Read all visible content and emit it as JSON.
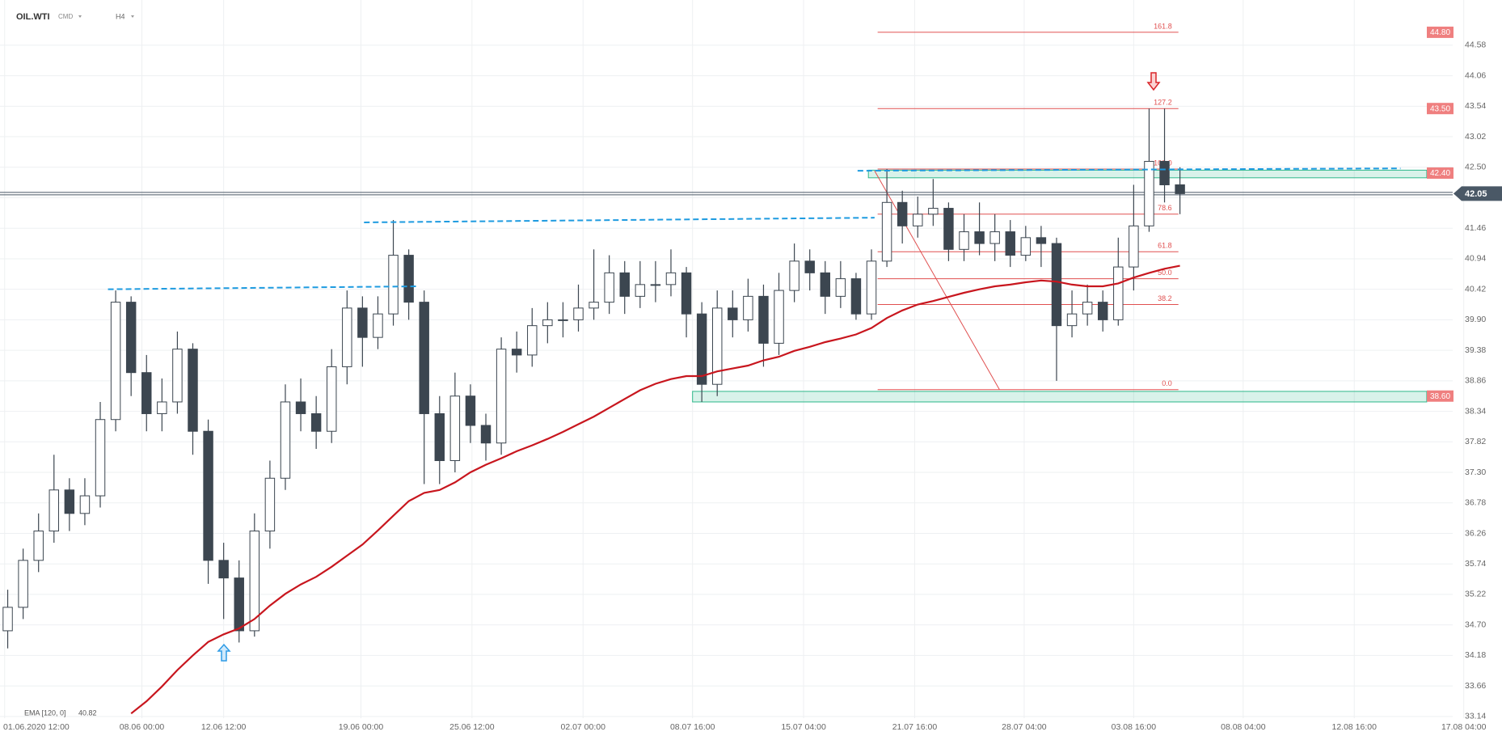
{
  "header": {
    "symbol": "OIL.WTI",
    "market": "CMD",
    "interval": "H4"
  },
  "chart_data": {
    "type": "candlestick",
    "xlim": [
      0,
      95
    ],
    "xticks": [
      {
        "value": 0.3,
        "label": "01.06.2020 12:00"
      },
      {
        "value": 9.2,
        "label": "08.06 00:00"
      },
      {
        "value": 14.5,
        "label": "12.06 12:00"
      },
      {
        "value": 23.4,
        "label": "19.06 00:00"
      },
      {
        "value": 30.6,
        "label": "25.06 12:00"
      },
      {
        "value": 37.8,
        "label": "02.07 00:00"
      },
      {
        "value": 44.9,
        "label": "08.07 16:00"
      },
      {
        "value": 52.1,
        "label": "15.07 04:00"
      },
      {
        "value": 59.3,
        "label": "21.07 16:00"
      },
      {
        "value": 66.4,
        "label": "28.07 04:00"
      },
      {
        "value": 73.5,
        "label": "03.08 16:00"
      },
      {
        "value": 80.6,
        "label": "08.08 04:00"
      },
      {
        "value": 87.8,
        "label": "12.08 16:00"
      },
      {
        "value": 94.9,
        "label": "17.08 04:00"
      }
    ],
    "ylim": [
      33.11,
      45.35
    ],
    "yticks": [
      33.14,
      33.66,
      34.18,
      {
        "value": 34.7,
        "label": "34.70"
      },
      35.22,
      35.74,
      36.26,
      36.78,
      {
        "value": 37.3,
        "label": "37.30"
      },
      37.82,
      38.34,
      38.86,
      39.38,
      {
        "value": 39.9,
        "label": "39.90"
      },
      40.42,
      40.94,
      41.46,
      41.98,
      {
        "value": 42.5,
        "label": "42.50"
      },
      43.02,
      43.54,
      44.06,
      44.58
    ],
    "grid": true,
    "colors": {
      "up": "#ffffff",
      "down": "#3c4650",
      "wick": "#3c4650"
    },
    "x": [
      0.5,
      1.5,
      2.5,
      3.5,
      4.5,
      5.5,
      6.5,
      7.5,
      8.5,
      9.5,
      10.5,
      11.5,
      12.5,
      13.5,
      14.5,
      15.5,
      16.5,
      17.5,
      18.5,
      19.5,
      20.5,
      21.5,
      22.5,
      23.5,
      24.5,
      25.5,
      26.5,
      27.5,
      28.5,
      29.5,
      30.5,
      31.5,
      32.5,
      33.5,
      34.5,
      35.5,
      36.5,
      37.5,
      38.5,
      39.5,
      40.5,
      41.5,
      42.5,
      43.5,
      44.5,
      45.5,
      46.5,
      47.5,
      48.5,
      49.5,
      50.5,
      51.5,
      52.5,
      53.5,
      54.5,
      55.5,
      56.5,
      57.5,
      58.5,
      59.5,
      60.5,
      61.5,
      62.5,
      63.5,
      64.5,
      65.5,
      66.5,
      67.5,
      68.5,
      69.5,
      70.5,
      71.5,
      72.5,
      73.5,
      74.5,
      75.5,
      76.5
    ],
    "open": [
      34.6,
      35.0,
      35.8,
      36.3,
      37.0,
      36.6,
      36.9,
      38.2,
      40.2,
      39.0,
      38.3,
      38.5,
      39.4,
      38.0,
      35.8,
      35.5,
      34.6,
      36.3,
      37.2,
      38.5,
      38.3,
      38.0,
      39.1,
      40.1,
      39.6,
      40.0,
      41.0,
      40.2,
      38.3,
      37.5,
      38.6,
      38.1,
      37.8,
      39.4,
      39.3,
      39.8,
      39.9,
      39.9,
      40.1,
      40.2,
      40.7,
      40.3,
      40.5,
      40.5,
      40.7,
      40.0,
      38.8,
      40.1,
      39.9,
      40.3,
      39.5,
      40.4,
      40.9,
      40.7,
      40.3,
      40.6,
      40.0,
      40.9,
      41.9,
      41.5,
      41.7,
      41.8,
      41.1,
      41.4,
      41.2,
      41.4,
      41.0,
      41.3,
      41.2,
      39.8,
      40.0,
      40.2,
      39.9,
      40.8,
      41.5,
      42.6,
      42.2
    ],
    "high": [
      35.3,
      36.0,
      36.6,
      37.6,
      37.2,
      37.2,
      38.5,
      40.4,
      40.3,
      39.3,
      38.9,
      39.7,
      39.5,
      38.2,
      36.1,
      35.8,
      36.6,
      37.5,
      38.8,
      38.9,
      38.6,
      39.4,
      40.4,
      40.3,
      40.3,
      41.6,
      41.1,
      40.4,
      38.6,
      39.0,
      38.8,
      38.3,
      39.6,
      39.7,
      40.1,
      40.2,
      40.2,
      40.5,
      41.1,
      41.0,
      40.9,
      40.9,
      40.9,
      41.1,
      40.8,
      40.2,
      40.4,
      40.4,
      40.6,
      40.5,
      40.7,
      41.2,
      41.1,
      40.9,
      40.9,
      40.7,
      41.1,
      42.47,
      42.1,
      42.0,
      42.3,
      41.9,
      41.7,
      41.9,
      41.7,
      41.6,
      41.5,
      41.5,
      41.3,
      40.4,
      40.5,
      40.4,
      41.3,
      42.2,
      43.5,
      43.5,
      42.5
    ],
    "low": [
      34.3,
      34.8,
      35.6,
      36.1,
      36.3,
      36.4,
      36.7,
      38.0,
      38.6,
      38.0,
      38.0,
      38.3,
      37.6,
      35.4,
      34.8,
      34.4,
      34.5,
      36.0,
      37.0,
      38.0,
      37.7,
      37.8,
      38.8,
      39.1,
      39.4,
      39.8,
      39.9,
      37.1,
      37.1,
      37.3,
      37.8,
      37.5,
      37.6,
      39.0,
      39.1,
      39.5,
      39.6,
      39.7,
      39.9,
      40.0,
      40.0,
      40.1,
      40.2,
      40.3,
      39.6,
      38.5,
      38.6,
      39.6,
      39.7,
      39.1,
      39.3,
      40.2,
      40.4,
      40.0,
      40.1,
      39.9,
      39.9,
      40.8,
      41.2,
      41.3,
      41.5,
      40.9,
      40.9,
      41.0,
      40.9,
      40.8,
      40.9,
      40.8,
      38.86,
      39.6,
      39.8,
      39.7,
      39.8,
      40.4,
      41.4,
      41.9,
      41.7
    ],
    "close": [
      35.0,
      35.8,
      36.3,
      37.0,
      36.6,
      36.9,
      38.2,
      40.2,
      39.0,
      38.3,
      38.5,
      39.4,
      38.0,
      35.8,
      35.5,
      34.6,
      36.3,
      37.2,
      38.5,
      38.3,
      38.0,
      39.1,
      40.1,
      39.6,
      40.0,
      41.0,
      40.2,
      38.3,
      37.5,
      38.6,
      38.1,
      37.8,
      39.4,
      39.3,
      39.8,
      39.9,
      39.9,
      40.1,
      40.2,
      40.7,
      40.3,
      40.5,
      40.5,
      40.7,
      40.0,
      38.8,
      40.1,
      39.9,
      40.3,
      39.5,
      40.4,
      40.9,
      40.7,
      40.3,
      40.6,
      40.0,
      40.9,
      41.9,
      41.5,
      41.7,
      41.8,
      41.1,
      41.4,
      41.2,
      41.4,
      41.0,
      41.3,
      41.2,
      39.8,
      40.0,
      40.2,
      39.9,
      40.8,
      41.5,
      42.6,
      42.2,
      42.05
    ],
    "ema": {
      "name": "EMA [120, 0]",
      "color": "#c8161e",
      "values": [
        null,
        null,
        null,
        null,
        null,
        null,
        null,
        null,
        33.19,
        33.4,
        33.65,
        33.93,
        34.18,
        34.41,
        34.54,
        34.64,
        34.8,
        35.03,
        35.23,
        35.39,
        35.52,
        35.69,
        35.88,
        36.07,
        36.31,
        36.56,
        36.81,
        36.95,
        37.0,
        37.13,
        37.3,
        37.43,
        37.54,
        37.66,
        37.76,
        37.87,
        37.99,
        38.12,
        38.25,
        38.4,
        38.55,
        38.7,
        38.81,
        38.89,
        38.94,
        38.94,
        39.02,
        39.07,
        39.12,
        39.21,
        39.27,
        39.37,
        39.44,
        39.52,
        39.58,
        39.65,
        39.76,
        39.93,
        40.06,
        40.16,
        40.22,
        40.29,
        40.36,
        40.42,
        40.47,
        40.5,
        40.54,
        40.57,
        40.55,
        40.5,
        40.47,
        40.47,
        40.52,
        40.62,
        40.7,
        40.77,
        40.82
      ]
    },
    "trend_lines": [
      {
        "x": [
          7,
          27
        ],
        "y": [
          40.42,
          40.47
        ]
      },
      {
        "x": [
          23.6,
          56.7
        ],
        "y": [
          41.56,
          41.64
        ]
      },
      {
        "x": [
          55.6,
          90.8
        ],
        "y": [
          42.44,
          42.48
        ]
      }
    ],
    "trend_color": "#1e9be0",
    "diagonal": {
      "x": [
        56.7,
        64.8
      ],
      "y": [
        42.44,
        38.71
      ],
      "color": "#e05050"
    },
    "fib": {
      "x": [
        56.9,
        76.4
      ],
      "color": "#e05050",
      "levels": [
        {
          "label": "161.8",
          "value": 44.8
        },
        {
          "label": "127.2",
          "value": 43.5
        },
        {
          "label": "100.0",
          "value": 42.47
        },
        {
          "label": "78.6",
          "value": 41.7
        },
        {
          "label": "61.8",
          "value": 41.06
        },
        {
          "label": "50.0",
          "value": 40.6
        },
        {
          "label": "38.2",
          "value": 40.16
        },
        {
          "label": "0.0",
          "value": 38.71
        }
      ]
    },
    "zones": [
      {
        "from": 42.32,
        "to": 42.45,
        "x": [
          56.3,
          92.5
        ]
      },
      {
        "from": 38.5,
        "to": 38.68,
        "x": [
          44.9,
          92.5
        ]
      }
    ],
    "zone_color": "#2eb88a",
    "price_tags": [
      {
        "value": 44.8,
        "label": "44.80"
      },
      {
        "value": 43.5,
        "label": "43.50"
      },
      {
        "value": 42.4,
        "label": "42.40"
      },
      {
        "value": 38.6,
        "label": "38.60"
      }
    ],
    "tag_color": "#ef7f7f",
    "last_price": {
      "value": 42.05,
      "label": "42.05"
    },
    "last_color": "#4a5866"
  }
}
